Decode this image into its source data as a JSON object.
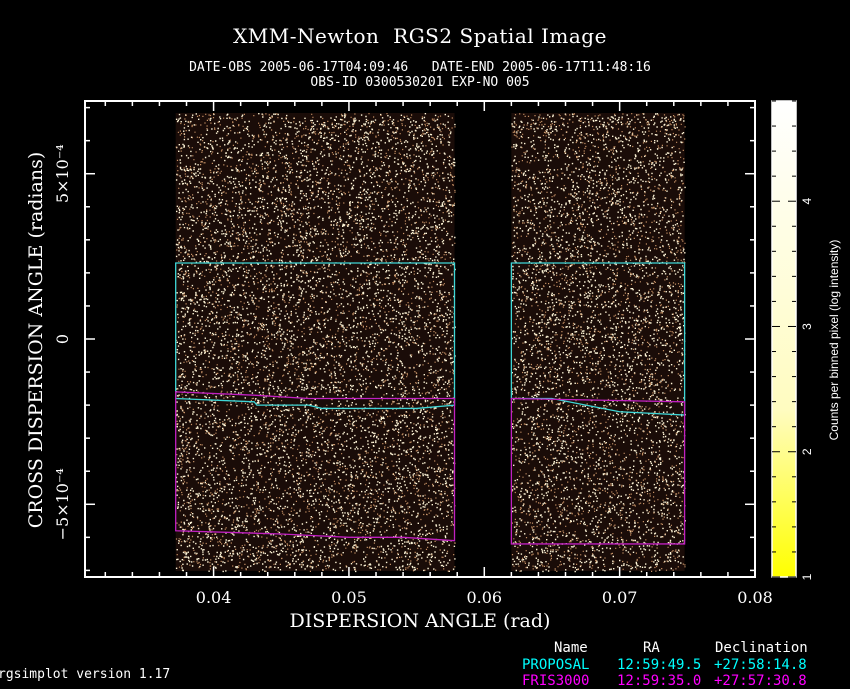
{
  "title": "XMM-Newton  RGS2 Spatial Image",
  "date_line": "DATE-OBS 2005-06-17T04:09:46   DATE-END 2005-06-17T11:48:16",
  "obs_line": "OBS-ID 0300530201 EXP-NO 005",
  "colorbar_label": "Counts per binned pixel (log intensity)",
  "legend": {
    "header_name": "Name",
    "header_ra": "RA",
    "header_dec": "Declination",
    "rows": [
      {
        "name": "PROPOSAL",
        "ra": "12:59:49.5",
        "dec": "+27:58:14.8",
        "color": "#00ffff"
      },
      {
        "name": "FRIS3000",
        "ra": "12:59:35.0",
        "dec": "+27:57:30.8",
        "color": "#ff00ff"
      }
    ]
  },
  "footer": "rgsimplot version 1.17",
  "colors": {
    "background": "#000000",
    "region_proposal": "#3fd6d6",
    "region_src": "#c020c0",
    "frame": "#ffffff",
    "colormap_low": "#ffff00",
    "colormap_high": "#ffffff"
  },
  "chart_data": {
    "type": "heatmap",
    "xlabel": "DISPERSION ANGLE (rad)",
    "ylabel": "CROSS DISPERSION ANGLE (radians)",
    "xlim": [
      0.0305,
      0.08
    ],
    "ylim": [
      -0.00072,
      0.00072
    ],
    "x_ticks": [
      {
        "value": 0.04,
        "label": "0.04"
      },
      {
        "value": 0.05,
        "label": "0.05"
      },
      {
        "value": 0.06,
        "label": "0.06"
      },
      {
        "value": 0.07,
        "label": "0.07"
      },
      {
        "value": 0.08,
        "label": "0.08"
      }
    ],
    "y_ticks": [
      {
        "value": 0.0005,
        "label": "5×10⁻⁴"
      },
      {
        "value": 0,
        "label": "0"
      },
      {
        "value": -0.0005,
        "label": "−5×10⁻⁴"
      }
    ],
    "colorbar": {
      "range": [
        1,
        4.8
      ],
      "ticks": [
        1,
        2,
        3,
        4
      ],
      "label": "Counts per binned pixel (log intensity)"
    },
    "exposed_regions_x": [
      [
        0.0372,
        0.0578
      ],
      [
        0.062,
        0.0748
      ]
    ],
    "proposal_region": {
      "x_ranges": [
        [
          0.0372,
          0.0578
        ],
        [
          0.062,
          0.0748
        ]
      ],
      "y_top": 0.00023,
      "y_bottom_edge": [
        [
          0.0372,
          -0.00018
        ],
        [
          0.043,
          -0.00019
        ],
        [
          0.0432,
          -0.0002
        ],
        [
          0.047,
          -0.0002
        ],
        [
          0.048,
          -0.00021
        ],
        [
          0.052,
          -0.00021
        ],
        [
          0.055,
          -0.00021
        ],
        [
          0.0578,
          -0.0002
        ],
        [
          0.062,
          -0.00018
        ],
        [
          0.065,
          -0.00018
        ],
        [
          0.07,
          -0.00022
        ],
        [
          0.0748,
          -0.00023
        ]
      ]
    },
    "source_region": {
      "x_ranges": [
        [
          0.0372,
          0.0578
        ],
        [
          0.062,
          0.0748
        ]
      ],
      "y_top_edge": [
        [
          0.0372,
          -0.00016
        ],
        [
          0.043,
          -0.00017
        ],
        [
          0.047,
          -0.00018
        ],
        [
          0.0578,
          -0.00018
        ],
        [
          0.062,
          -0.00018
        ],
        [
          0.0748,
          -0.00019
        ]
      ],
      "y_bottom_edge": [
        [
          0.0372,
          -0.00058
        ],
        [
          0.045,
          -0.00059
        ],
        [
          0.05,
          -0.0006
        ],
        [
          0.054,
          -0.0006
        ],
        [
          0.0578,
          -0.00061
        ],
        [
          0.062,
          -0.00062
        ],
        [
          0.07,
          -0.00062
        ],
        [
          0.0748,
          -0.00062
        ]
      ]
    }
  }
}
